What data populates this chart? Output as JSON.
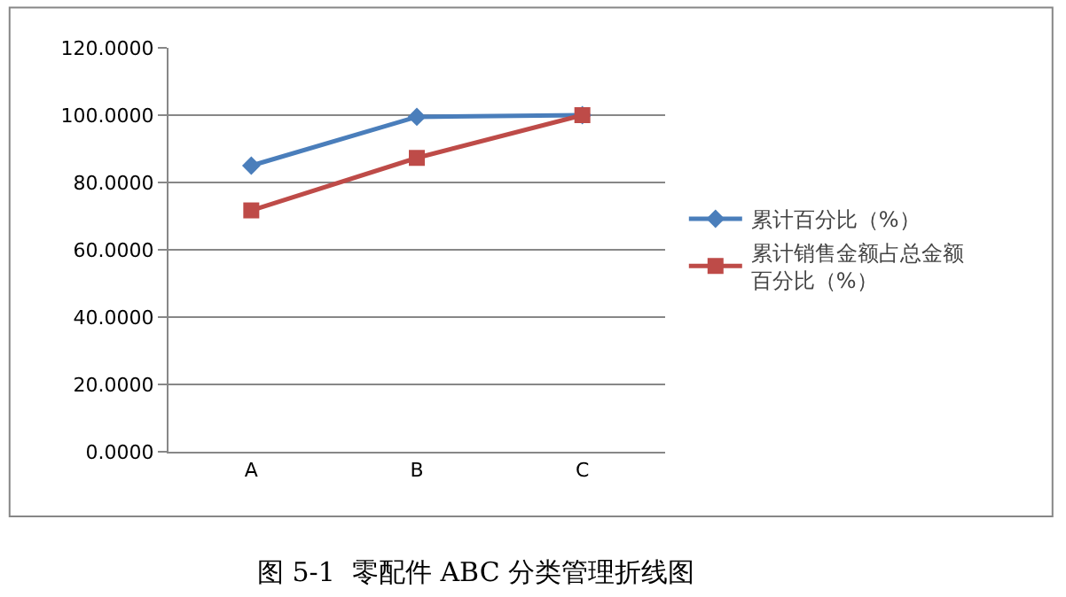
{
  "chart_data": {
    "type": "line",
    "categories": [
      "A",
      "B",
      "C"
    ],
    "series": [
      {
        "name": "累计百分比（%）",
        "color": "#4a7ebb",
        "marker": "diamond",
        "values": [
          85,
          99.5,
          100
        ]
      },
      {
        "name": "累计销售金额占总金额百分比（%）",
        "color": "#be4b48",
        "marker": "square",
        "values": [
          71.7,
          87.3,
          100
        ]
      }
    ],
    "ylim": [
      0,
      120
    ],
    "yticks": [
      {
        "value": 0,
        "label": "0.0000"
      },
      {
        "value": 20,
        "label": "20.0000"
      },
      {
        "value": 40,
        "label": "40.0000"
      },
      {
        "value": 60,
        "label": "60.0000"
      },
      {
        "value": 80,
        "label": "80.0000"
      },
      {
        "value": 100,
        "label": "100.0000"
      },
      {
        "value": 120,
        "label": "120.0000"
      }
    ],
    "grid": "y",
    "legend": "right",
    "annotations": [
      "图 5-1  零配件 ABC 分类管理折线图"
    ]
  }
}
